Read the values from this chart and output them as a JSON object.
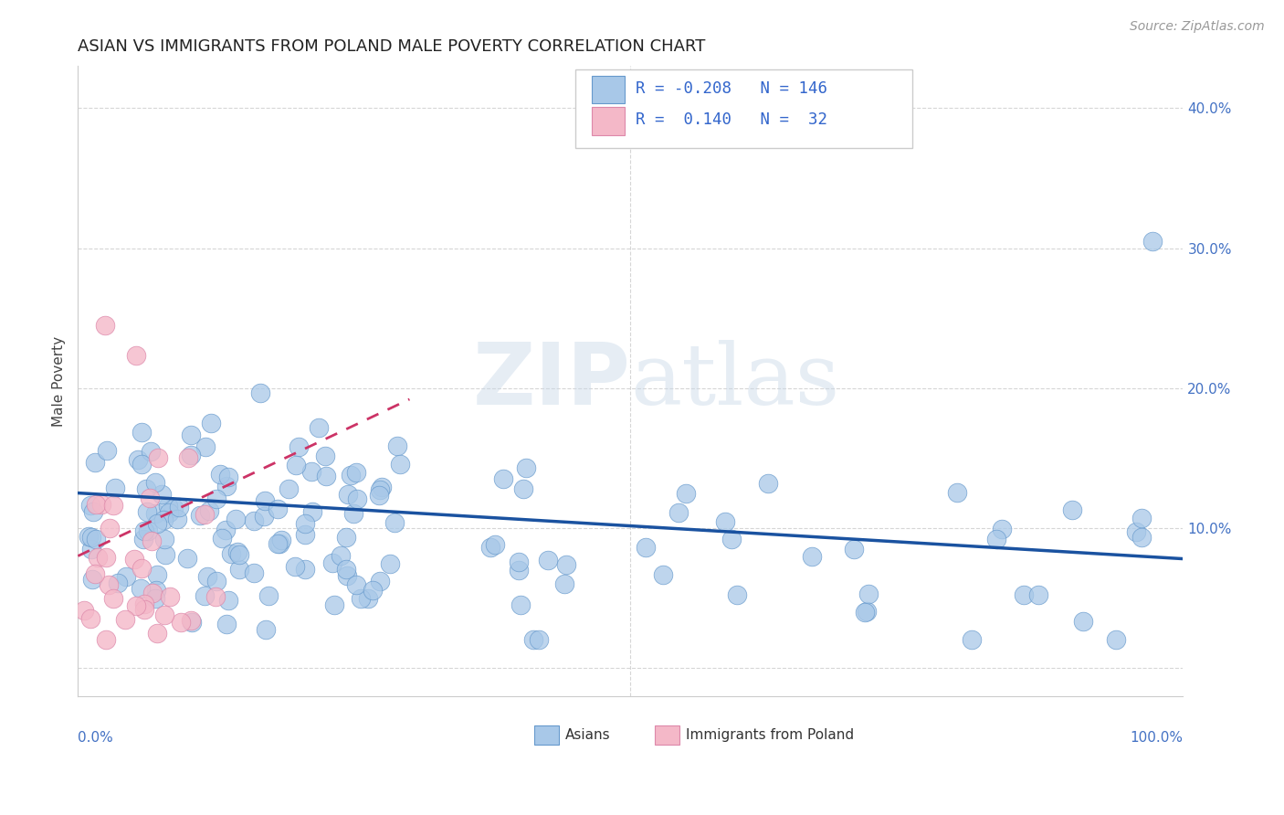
{
  "title": "ASIAN VS IMMIGRANTS FROM POLAND MALE POVERTY CORRELATION CHART",
  "source": "Source: ZipAtlas.com",
  "ylabel": "Male Poverty",
  "xmin": 0.0,
  "xmax": 1.0,
  "ymin": -0.02,
  "ymax": 0.43,
  "asian_color": "#a8c8e8",
  "asian_edge_color": "#6699cc",
  "poland_color": "#f4b8c8",
  "poland_edge_color": "#dd88aa",
  "asian_line_color": "#1a52a0",
  "poland_line_color": "#cc3366",
  "grid_color": "#cccccc",
  "background_color": "#ffffff",
  "asian_trend_x0": 0.0,
  "asian_trend_y0": 0.125,
  "asian_trend_x1": 1.0,
  "asian_trend_y1": 0.078,
  "poland_trend_x0": 0.0,
  "poland_trend_y0": 0.08,
  "poland_trend_x1": 0.3,
  "poland_trend_y1": 0.192,
  "title_fontsize": 13,
  "source_fontsize": 10,
  "axis_tick_fontsize": 11,
  "legend_fontsize": 13,
  "right_yticks": [
    0.0,
    0.1,
    0.2,
    0.3,
    0.4
  ],
  "right_yticklabels": [
    "",
    "10.0%",
    "20.0%",
    "30.0%",
    "40.0%"
  ]
}
